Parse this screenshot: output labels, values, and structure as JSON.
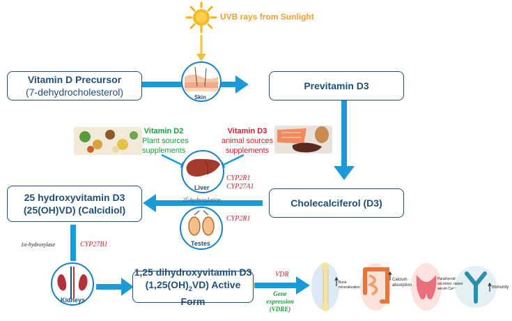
{
  "sun_label": "UVB rays from Sunlight",
  "boxes": {
    "precursor": {
      "title": "Vitamin D Precursor",
      "sub": "(7-dehydrocholesterol)"
    },
    "previtamin": {
      "title": "Previtamin D3"
    },
    "calcidiol": {
      "title": "25 hydroxyvitamin D3",
      "sub": "(25(OH)VD) (Calcidiol)"
    },
    "cholecalciferol": {
      "title": "Cholecalciferol (D3)"
    },
    "active": {
      "title": "1,25 dihydroxyvitamin D3",
      "sub_a": "(1,25(OH)",
      "sub_sub": "2",
      "sub_b": "VD) Active Form"
    }
  },
  "organs": {
    "skin": "Skin",
    "liver": "Liver",
    "testes": "Testes",
    "kidneys": "Kidneys"
  },
  "vitd2": {
    "title": "Vitamin D2",
    "line1": "Plant sources",
    "line2": "supplements"
  },
  "vitd3": {
    "title": "Vitamin D3",
    "line1": "animal sources",
    "line2": "supplements"
  },
  "enzymes": {
    "liver1": "CYP2R1",
    "liver2": "CYP27A1",
    "testes": "CYP2R1",
    "hydroxylation25": "25-hydroxylation",
    "alpha_hydroxylase": "1α-hydroxylase",
    "kidney": "CYP27B1"
  },
  "vdr": "VDR",
  "gene": {
    "line1": "Gene",
    "line2": "expression",
    "line3": "(VDRE)"
  },
  "effects": {
    "bone": {
      "l1": "Bone",
      "l2": "mineralization"
    },
    "calcium": {
      "l1": "Calcium",
      "l2": "absorption"
    },
    "pth": {
      "l1": "Parathyroid",
      "l2": "secretion: raises",
      "l3": "serum Ca²⁺"
    },
    "immunity": {
      "l1": "Immunity"
    }
  },
  "colors": {
    "arrow": "#1a9ad6",
    "navy": "#1f4e79",
    "green": "#1aa03a",
    "red": "#d0202a",
    "orange": "#f0a030"
  }
}
